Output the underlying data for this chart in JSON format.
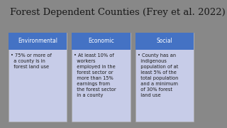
{
  "title": "Forest Dependent Counties (Frey et al. 2022)",
  "title_fontsize": 9.5,
  "title_color": "#1a1a1a",
  "slide_bg": "#d9d9d9",
  "outer_bg": "#888888",
  "header_bg": "#4472c4",
  "card_bg": "#c7cce8",
  "header_color": "#ffffff",
  "body_color": "#1a1a1a",
  "columns": [
    {
      "header": "Environmental",
      "body": "• 75% or more of\n  a county is in\n  forest land use"
    },
    {
      "header": "Economic",
      "body": "• At least 10% of\n  workers\n  employed in the\n  forest sector or\n  more than 15%\n  earnings from\n  the forest sector\n  in a county"
    },
    {
      "header": "Social",
      "body": "• County has an\n  indigenous\n  population of at\n  least 5% of the\n  total population\n  and a minimum\n  of 30% forest\n  land use"
    }
  ],
  "header_fontsize": 5.5,
  "body_fontsize": 4.8
}
